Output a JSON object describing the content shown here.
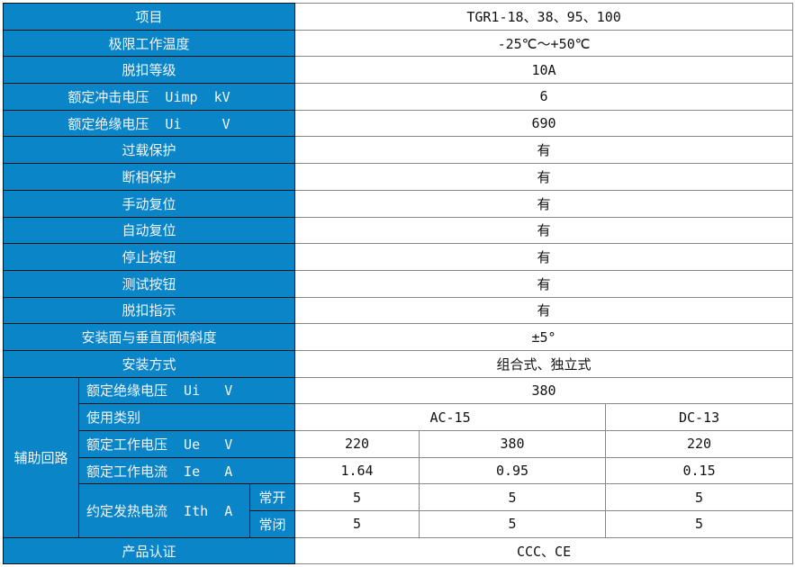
{
  "header_color": "#0a85c8",
  "rows": [
    {
      "label": "项目",
      "value": "TGR1-18、38、95、100"
    },
    {
      "label": "极限工作温度",
      "value": "-25℃～+50℃"
    },
    {
      "label": "脱扣等级",
      "value": "10A"
    },
    {
      "label": "额定冲击电压  Uimp  kV",
      "value": "6"
    },
    {
      "label": "额定绝缘电压  Ui     V",
      "value": "690"
    },
    {
      "label": "过载保护",
      "value": "有"
    },
    {
      "label": "断相保护",
      "value": "有"
    },
    {
      "label": "手动复位",
      "value": "有"
    },
    {
      "label": "自动复位",
      "value": "有"
    },
    {
      "label": "停止按钮",
      "value": "有"
    },
    {
      "label": "测试按钮",
      "value": "有"
    },
    {
      "label": "脱扣指示",
      "value": "有"
    },
    {
      "label": "安装面与垂直面倾斜度",
      "value": "±5°"
    },
    {
      "label": "安装方式",
      "value": "组合式、独立式"
    }
  ],
  "aux": {
    "group": "辅助回路",
    "insulation": {
      "label": "额定绝缘电压  Ui   V",
      "value": "380"
    },
    "category": {
      "label": "使用类别",
      "ac": "AC-15",
      "dc": "DC-13"
    },
    "voltage": {
      "label": "额定工作电压  Ue   V",
      "values": [
        "220",
        "380",
        "220"
      ]
    },
    "current": {
      "label": "额定工作电流  Ie   A",
      "values": [
        "1.64",
        "0.95",
        "0.15"
      ]
    },
    "thermal": {
      "label": "约定发热电流  Ith  A",
      "no": {
        "label": "常开",
        "values": [
          "5",
          "5",
          "5"
        ]
      },
      "nc": {
        "label": "常闭",
        "values": [
          "5",
          "5",
          "5"
        ]
      }
    }
  },
  "cert": {
    "label": "产品认证",
    "value": "CCC、CE"
  }
}
